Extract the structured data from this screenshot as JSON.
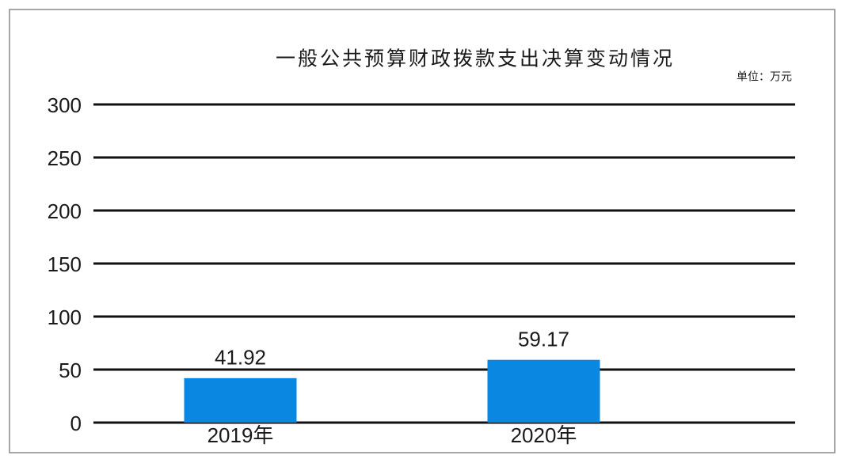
{
  "chart_data": {
    "type": "bar",
    "title": "一般公共预算财政拨款支出决算变动情况",
    "unit": "单位：万元",
    "categories": [
      "2019年",
      "2020年"
    ],
    "values": [
      41.92,
      59.17
    ],
    "color": "#0a87e0",
    "ylim": [
      0,
      300
    ],
    "yticks": [
      0,
      50,
      100,
      150,
      200,
      250,
      300
    ],
    "grid": true
  }
}
